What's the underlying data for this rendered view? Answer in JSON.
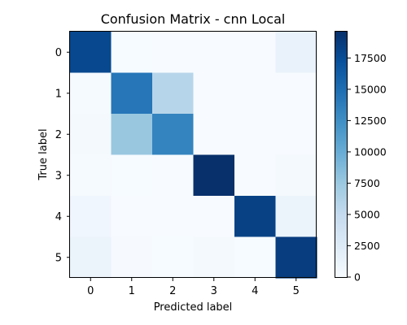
{
  "chart_data": {
    "type": "heatmap",
    "title": "Confusion Matrix - cnn Local",
    "xlabel": "Predicted label",
    "ylabel": "True label",
    "x_categories": [
      "0",
      "1",
      "2",
      "3",
      "4",
      "5"
    ],
    "y_categories": [
      "0",
      "1",
      "2",
      "3",
      "4",
      "5"
    ],
    "values": [
      [
        17800,
        60,
        40,
        30,
        20,
        1400
      ],
      [
        150,
        14300,
        5800,
        20,
        10,
        30
      ],
      [
        250,
        7600,
        13300,
        20,
        10,
        40
      ],
      [
        200,
        60,
        40,
        19600,
        20,
        300
      ],
      [
        700,
        40,
        40,
        30,
        18300,
        1100
      ],
      [
        1200,
        80,
        60,
        250,
        60,
        18600
      ]
    ],
    "colormap": "Blues",
    "color_min": 0,
    "color_max": 19600,
    "colorbar_ticks": [
      0,
      2500,
      5000,
      7500,
      10000,
      12500,
      15000,
      17500
    ],
    "colors": {
      "low": "#f7fbff",
      "high": "#08306b"
    }
  }
}
